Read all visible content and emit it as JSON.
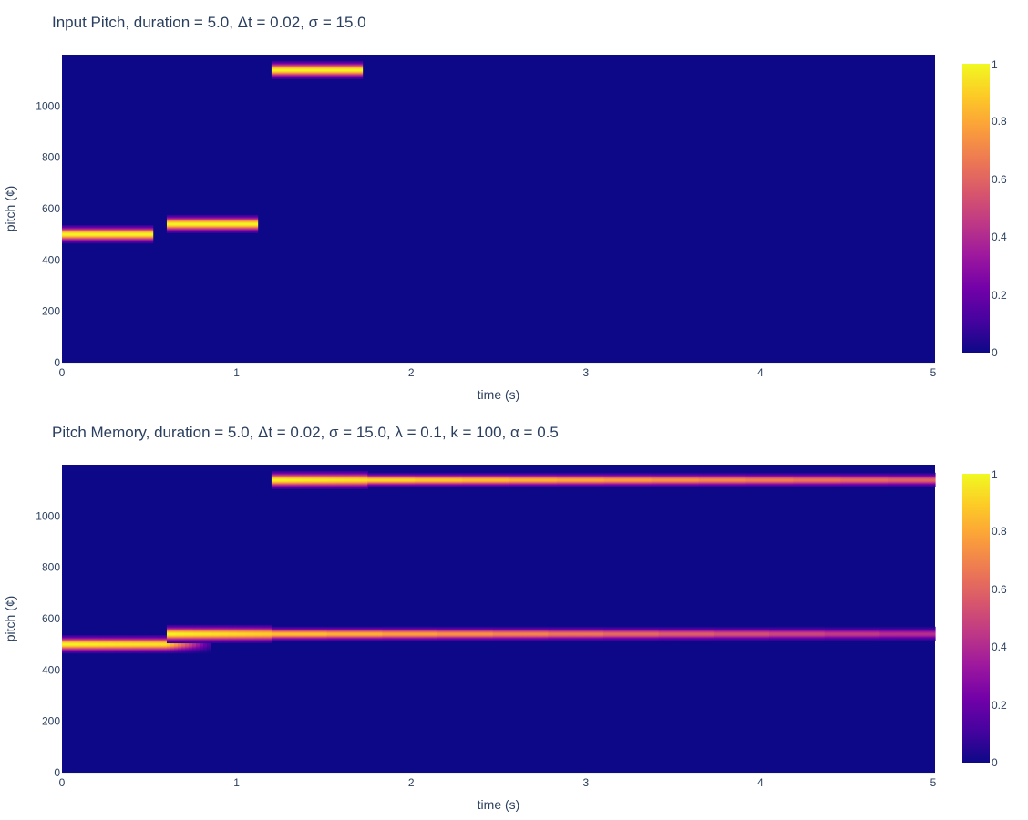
{
  "chart_data": [
    {
      "type": "heatmap",
      "title": "Input Pitch, duration = 5.0, Δt = 0.02, σ = 15.0",
      "xlabel": "time (s)",
      "ylabel": "pitch (¢)",
      "xlim": [
        0,
        5
      ],
      "ylim": [
        0,
        1200
      ],
      "x_ticks": [
        "0",
        "1",
        "2",
        "3",
        "4",
        "5"
      ],
      "y_ticks": [
        "0",
        "200",
        "400",
        "600",
        "800",
        "1000"
      ],
      "colorbar": {
        "range": [
          0,
          1
        ],
        "ticks": [
          "0",
          "0.2",
          "0.4",
          "0.6",
          "0.8",
          "1"
        ],
        "colorscale": "plasma"
      },
      "background_value": 0,
      "bands": [
        {
          "t_start": 0.0,
          "t_end": 0.52,
          "pitch": 500,
          "sigma": 15,
          "peak_start": 1.0,
          "peak_end": 1.0
        },
        {
          "t_start": 0.6,
          "t_end": 1.12,
          "pitch": 540,
          "sigma": 15,
          "peak_start": 1.0,
          "peak_end": 1.0
        },
        {
          "t_start": 1.2,
          "t_end": 1.72,
          "pitch": 1140,
          "sigma": 15,
          "peak_start": 1.0,
          "peak_end": 1.0
        }
      ]
    },
    {
      "type": "heatmap",
      "title": "Pitch Memory, duration = 5.0, Δt = 0.02, σ = 15.0, λ = 0.1, k = 100, α = 0.5",
      "xlabel": "time (s)",
      "ylabel": "pitch (¢)",
      "xlim": [
        0,
        5
      ],
      "ylim": [
        0,
        1200
      ],
      "x_ticks": [
        "0",
        "1",
        "2",
        "3",
        "4",
        "5"
      ],
      "y_ticks": [
        "0",
        "200",
        "400",
        "600",
        "800",
        "1000"
      ],
      "colorbar": {
        "range": [
          0,
          1
        ],
        "ticks": [
          "0",
          "0.2",
          "0.4",
          "0.6",
          "0.8",
          "1"
        ],
        "colorscale": "plasma"
      },
      "background_value": 0,
      "bands": [
        {
          "t_start": 0.0,
          "t_end": 0.6,
          "pitch": 500,
          "sigma": 15,
          "peak_start": 1.0,
          "peak_end": 0.95
        },
        {
          "t_start": 0.6,
          "t_end": 0.85,
          "pitch": 500,
          "sigma": 15,
          "peak_start": 0.95,
          "peak_end": 0.1
        },
        {
          "t_start": 0.6,
          "t_end": 1.2,
          "pitch": 540,
          "sigma": 15,
          "peak_start": 1.0,
          "peak_end": 0.9
        },
        {
          "t_start": 1.2,
          "t_end": 5.0,
          "pitch": 540,
          "sigma": 12,
          "peak_start": 0.9,
          "peak_end": 0.4
        },
        {
          "t_start": 1.2,
          "t_end": 1.75,
          "pitch": 1140,
          "sigma": 15,
          "peak_start": 1.0,
          "peak_end": 0.95
        },
        {
          "t_start": 1.75,
          "t_end": 5.0,
          "pitch": 1140,
          "sigma": 12,
          "peak_start": 0.95,
          "peak_end": 0.6
        }
      ]
    }
  ]
}
